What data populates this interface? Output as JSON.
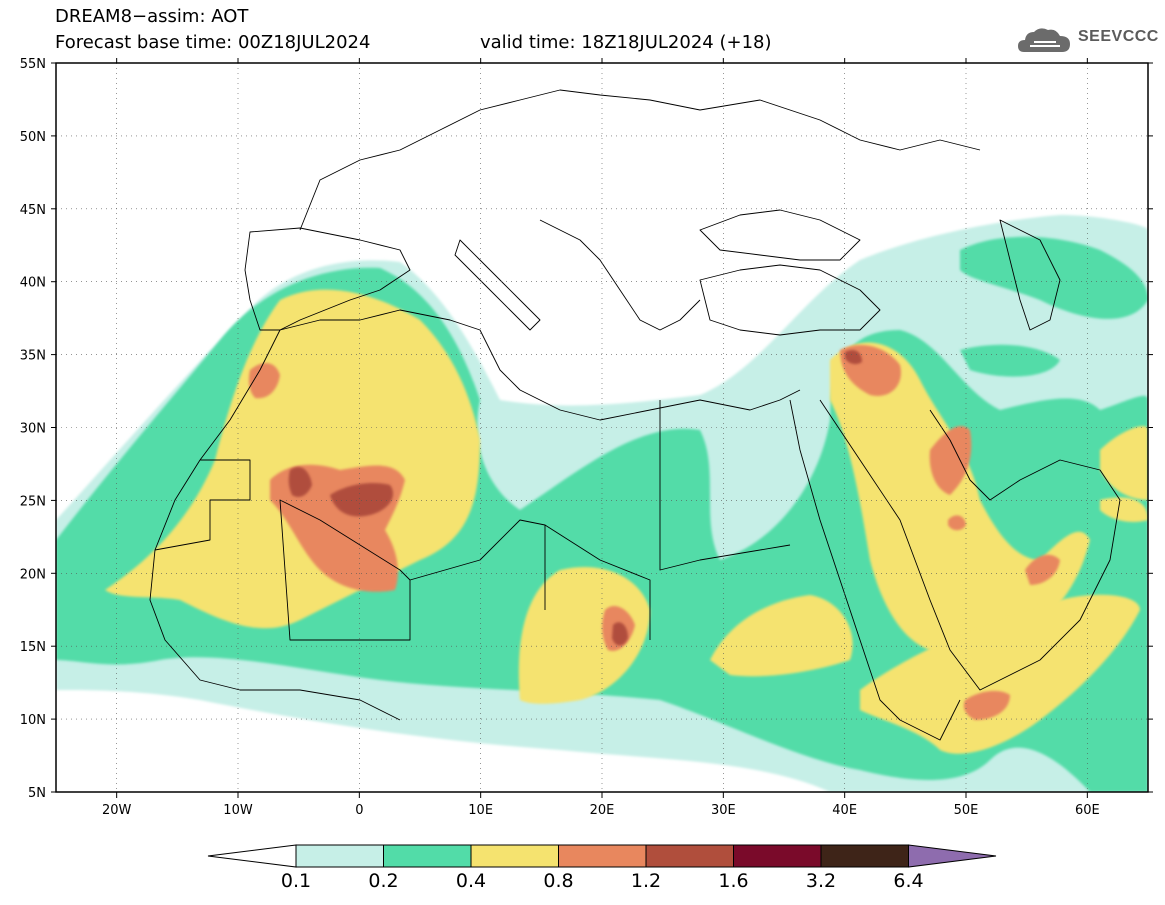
{
  "title": {
    "line1": "DREAM8−assim: AOT",
    "line2": "Forecast base time: 00Z18JUL2024",
    "valid": "valid time: 18Z18JUL2024 (+18)"
  },
  "logo": {
    "text": "SEEVCCC",
    "icon": "cloud-logo-icon"
  },
  "axes": {
    "lon_range": [
      -25,
      65
    ],
    "lat_range": [
      5,
      55
    ],
    "lon_ticks": [
      "20W",
      "10W",
      "0",
      "10E",
      "20E",
      "30E",
      "40E",
      "50E",
      "60E"
    ],
    "lon_tick_values": [
      -20,
      -10,
      0,
      10,
      20,
      30,
      40,
      50,
      60
    ],
    "lat_ticks": [
      "55N",
      "50N",
      "45N",
      "40N",
      "35N",
      "30N",
      "25N",
      "20N",
      "15N",
      "10N",
      "5N"
    ],
    "lat_tick_values": [
      55,
      50,
      45,
      40,
      35,
      30,
      25,
      20,
      15,
      10,
      5
    ],
    "grid": "dotted"
  },
  "colorbar": {
    "labels": [
      "0.1",
      "0.2",
      "0.4",
      "0.8",
      "1.2",
      "1.6",
      "3.2",
      "6.4"
    ],
    "colors": [
      "#c6efe7",
      "#52dca8",
      "#f5e36f",
      "#e8875e",
      "#b04e3c",
      "#7a0a2a",
      "#3e2418"
    ],
    "under_color": "#ffffff",
    "over_color": "#8e6cae"
  },
  "colors": {
    "c01": "#c6efe7",
    "c02": "#52dca8",
    "c04": "#f5e36f",
    "c08": "#e8875e",
    "c12": "#b04e3c",
    "coast": "#000000"
  }
}
